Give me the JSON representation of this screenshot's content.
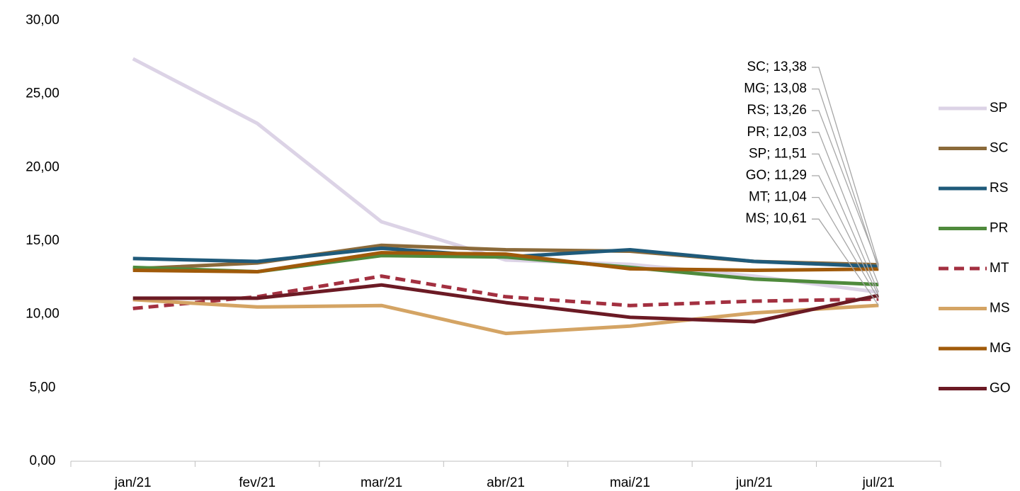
{
  "chart_data": {
    "type": "line",
    "categories": [
      "jan/21",
      "fev/21",
      "mar/21",
      "abr/21",
      "mai/21",
      "jun/21",
      "jul/21"
    ],
    "ylim": [
      0,
      30
    ],
    "yticks": [
      {
        "value": 0,
        "label": "0,00"
      },
      {
        "value": 5,
        "label": "5,00"
      },
      {
        "value": 10,
        "label": "10,00"
      },
      {
        "value": 15,
        "label": "15,00"
      },
      {
        "value": 20,
        "label": "20,00"
      },
      {
        "value": 25,
        "label": "25,00"
      },
      {
        "value": 30,
        "label": "30,00"
      }
    ],
    "legend": "right",
    "series": [
      {
        "name": "SP",
        "color": "#dcd3e6",
        "values": [
          27.4,
          23.0,
          16.3,
          13.7,
          13.4,
          12.6,
          11.51
        ],
        "value_labels": [
          null,
          null,
          null,
          null,
          null,
          null,
          "SP; 11,51"
        ]
      },
      {
        "name": "SC",
        "color": "#8b6a3a",
        "values": [
          13.1,
          13.5,
          14.7,
          14.4,
          14.3,
          13.6,
          13.38
        ],
        "value_labels": [
          null,
          null,
          null,
          null,
          null,
          null,
          "SC; 13,38"
        ]
      },
      {
        "name": "RS",
        "color": "#1f5a7a",
        "values": [
          13.8,
          13.6,
          14.5,
          13.9,
          14.4,
          13.6,
          13.26
        ],
        "value_labels": [
          null,
          null,
          null,
          null,
          null,
          null,
          "RS; 13,26"
        ]
      },
      {
        "name": "PR",
        "color": "#4f8a3c",
        "values": [
          13.2,
          12.9,
          14.0,
          13.9,
          13.2,
          12.4,
          12.03
        ],
        "value_labels": [
          null,
          null,
          null,
          null,
          null,
          null,
          "PR; 12,03"
        ]
      },
      {
        "name": "MT",
        "color": "#a33040",
        "dashed": true,
        "values": [
          10.4,
          11.2,
          12.6,
          11.2,
          10.6,
          10.9,
          11.04
        ],
        "value_labels": [
          null,
          null,
          null,
          null,
          null,
          null,
          "MT; 11,04"
        ]
      },
      {
        "name": "MS",
        "color": "#d4a464",
        "values": [
          11.0,
          10.5,
          10.6,
          8.7,
          9.2,
          10.1,
          10.61
        ],
        "value_labels": [
          null,
          null,
          null,
          null,
          null,
          null,
          "MS; 10,61"
        ]
      },
      {
        "name": "MG",
        "color": "#a05a0a",
        "values": [
          13.0,
          12.9,
          14.2,
          14.1,
          13.1,
          13.0,
          13.08
        ],
        "value_labels": [
          null,
          null,
          null,
          null,
          null,
          null,
          "MG; 13,08"
        ]
      },
      {
        "name": "GO",
        "color": "#6b1a24",
        "values": [
          11.1,
          11.1,
          12.0,
          10.8,
          9.8,
          9.5,
          11.29
        ],
        "value_labels": [
          null,
          null,
          null,
          null,
          null,
          null,
          "GO; 11,29"
        ]
      }
    ]
  }
}
